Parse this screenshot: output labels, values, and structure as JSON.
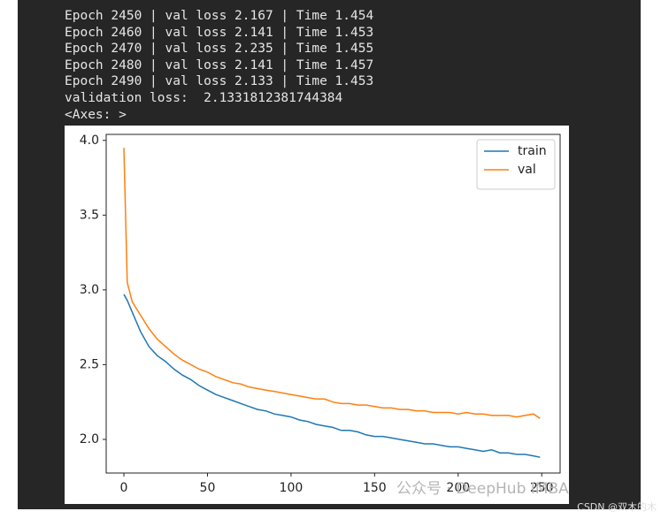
{
  "console": {
    "lines": [
      "Epoch 2450 | val loss 2.167 | Time 1.454",
      "Epoch 2460 | val loss 2.141 | Time 1.453",
      "Epoch 2470 | val loss 2.235 | Time 1.455",
      "Epoch 2480 | val loss 2.141 | Time 1.457",
      "Epoch 2490 | val loss 2.133 | Time 1.453",
      "validation loss:  2.1331812381744384",
      "<Axes: >"
    ]
  },
  "watermarks": [
    "公众号 · DeepHub IMBA",
    "CSDN @双木的木"
  ],
  "chart_data": {
    "type": "line",
    "x": [
      0,
      2,
      5,
      10,
      15,
      20,
      25,
      30,
      35,
      40,
      45,
      50,
      55,
      60,
      65,
      70,
      75,
      80,
      85,
      90,
      95,
      100,
      105,
      110,
      115,
      120,
      125,
      130,
      135,
      140,
      145,
      150,
      155,
      160,
      165,
      170,
      175,
      180,
      185,
      190,
      195,
      200,
      205,
      210,
      215,
      220,
      225,
      230,
      235,
      240,
      245,
      249
    ],
    "series": [
      {
        "name": "train",
        "color": "#1f77b4",
        "values": [
          2.97,
          2.93,
          2.85,
          2.72,
          2.62,
          2.56,
          2.52,
          2.47,
          2.43,
          2.4,
          2.36,
          2.33,
          2.3,
          2.28,
          2.26,
          2.24,
          2.22,
          2.2,
          2.19,
          2.17,
          2.16,
          2.15,
          2.13,
          2.12,
          2.1,
          2.09,
          2.08,
          2.06,
          2.06,
          2.05,
          2.03,
          2.02,
          2.02,
          2.01,
          2.0,
          1.99,
          1.98,
          1.97,
          1.97,
          1.96,
          1.95,
          1.95,
          1.94,
          1.93,
          1.92,
          1.93,
          1.91,
          1.91,
          1.9,
          1.9,
          1.89,
          1.88
        ]
      },
      {
        "name": "val",
        "color": "#ff7f0e",
        "values": [
          3.95,
          3.05,
          2.92,
          2.83,
          2.74,
          2.67,
          2.62,
          2.57,
          2.53,
          2.5,
          2.47,
          2.45,
          2.42,
          2.4,
          2.38,
          2.37,
          2.35,
          2.34,
          2.33,
          2.32,
          2.31,
          2.3,
          2.29,
          2.28,
          2.27,
          2.27,
          2.25,
          2.24,
          2.24,
          2.23,
          2.23,
          2.22,
          2.21,
          2.21,
          2.2,
          2.2,
          2.19,
          2.19,
          2.18,
          2.18,
          2.18,
          2.17,
          2.18,
          2.17,
          2.17,
          2.16,
          2.16,
          2.16,
          2.15,
          2.16,
          2.17,
          2.14
        ]
      }
    ],
    "xlim": [
      -10.6,
      261
    ],
    "xticks": [
      0,
      50,
      100,
      150,
      200,
      250
    ],
    "ylim": [
      1.775,
      4.04
    ],
    "yticks": [
      {
        "value": 2,
        "label": "2.0"
      },
      {
        "value": 2.5,
        "label": "2.5"
      },
      {
        "value": 3,
        "label": "3.0"
      },
      {
        "value": 3.5,
        "label": "3.5"
      },
      {
        "value": 4,
        "label": "4.0"
      }
    ],
    "legend": "upper right"
  }
}
